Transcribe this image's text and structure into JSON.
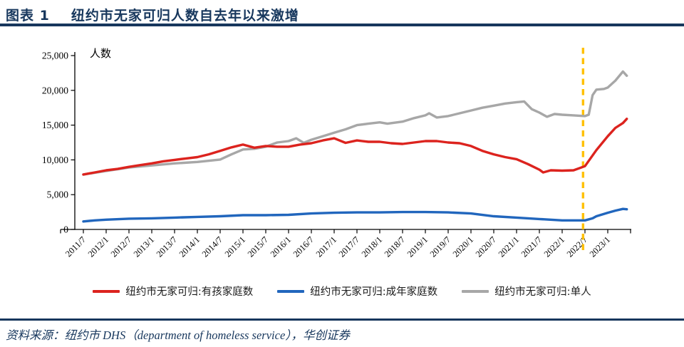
{
  "header": {
    "tag": "图表 1",
    "title": "纽约市无家可归人数自去年以来激增"
  },
  "footer": {
    "source": "资料来源：纽约市 DHS（department of homeless service），华创证券"
  },
  "colors": {
    "accent_navy": "#17375d",
    "axis_black": "#000000",
    "series_red": "#dc231e",
    "series_blue": "#2166bd",
    "series_gray": "#a7a7a7",
    "marker_yellow": "#ffc000"
  },
  "chart_data": {
    "type": "line",
    "unit_label": "人数",
    "ylim": [
      0,
      25000
    ],
    "y_tick_step": 5000,
    "y_tick_labels": [
      "0",
      "5,000",
      "10,000",
      "15,000",
      "20,000",
      "25,000"
    ],
    "x_tick_labels": [
      "2011/7",
      "2012/1",
      "2012/7",
      "2013/1",
      "2013/7",
      "2014/1",
      "2014/7",
      "2015/1",
      "2015/7",
      "2016/1",
      "2016/7",
      "2017/1",
      "2017/7",
      "2018/1",
      "2018/7",
      "2019/1",
      "2019/7",
      "2020/1",
      "2020/7",
      "2021/1",
      "2021/7",
      "2022/1",
      "2022/7",
      "2023/1"
    ],
    "x_axis_note": "monthly data, x in months since 2011/7, ticks every 6 months",
    "grid": false,
    "legend_position": "bottom",
    "marker_line": {
      "x_month": 131.5,
      "at_label": "2022/7",
      "style": "dashed",
      "color": "#ffc000"
    },
    "series": [
      {
        "name": "纽约市无家可归:单人",
        "color": "#a7a7a7",
        "points": [
          [
            0,
            7900
          ],
          [
            6,
            8400
          ],
          [
            12,
            8900
          ],
          [
            18,
            9200
          ],
          [
            24,
            9500
          ],
          [
            30,
            9700
          ],
          [
            36,
            10050
          ],
          [
            39,
            10800
          ],
          [
            42,
            11500
          ],
          [
            45,
            11600
          ],
          [
            48,
            11900
          ],
          [
            51,
            12500
          ],
          [
            54,
            12700
          ],
          [
            56,
            13100
          ],
          [
            58,
            12450
          ],
          [
            60,
            12900
          ],
          [
            63,
            13400
          ],
          [
            66,
            13900
          ],
          [
            69,
            14400
          ],
          [
            72,
            15000
          ],
          [
            75,
            15200
          ],
          [
            78,
            15400
          ],
          [
            80,
            15200
          ],
          [
            84,
            15500
          ],
          [
            87,
            16000
          ],
          [
            90,
            16400
          ],
          [
            91,
            16700
          ],
          [
            93,
            16100
          ],
          [
            96,
            16300
          ],
          [
            99,
            16700
          ],
          [
            102,
            17100
          ],
          [
            105,
            17500
          ],
          [
            108,
            17800
          ],
          [
            111,
            18100
          ],
          [
            114,
            18300
          ],
          [
            116,
            18400
          ],
          [
            118,
            17300
          ],
          [
            120,
            16800
          ],
          [
            122,
            16200
          ],
          [
            124,
            16600
          ],
          [
            126,
            16500
          ],
          [
            129,
            16400
          ],
          [
            132,
            16300
          ],
          [
            133,
            16500
          ],
          [
            134,
            19300
          ],
          [
            135,
            20100
          ],
          [
            137,
            20200
          ],
          [
            138,
            20400
          ],
          [
            140,
            21400
          ],
          [
            142,
            22700
          ],
          [
            143,
            22100
          ]
        ]
      },
      {
        "name": "纽约市无家可归:成年家庭数",
        "color": "#2166bd",
        "points": [
          [
            0,
            1150
          ],
          [
            3,
            1300
          ],
          [
            6,
            1400
          ],
          [
            12,
            1550
          ],
          [
            18,
            1600
          ],
          [
            24,
            1700
          ],
          [
            30,
            1800
          ],
          [
            36,
            1900
          ],
          [
            42,
            2050
          ],
          [
            48,
            2050
          ],
          [
            54,
            2100
          ],
          [
            60,
            2300
          ],
          [
            66,
            2400
          ],
          [
            72,
            2450
          ],
          [
            78,
            2450
          ],
          [
            84,
            2500
          ],
          [
            90,
            2500
          ],
          [
            96,
            2450
          ],
          [
            102,
            2300
          ],
          [
            108,
            1900
          ],
          [
            114,
            1700
          ],
          [
            120,
            1500
          ],
          [
            126,
            1300
          ],
          [
            132,
            1300
          ],
          [
            134,
            1600
          ],
          [
            135,
            1900
          ],
          [
            138,
            2400
          ],
          [
            140,
            2700
          ],
          [
            142,
            2950
          ],
          [
            143,
            2900
          ]
        ]
      },
      {
        "name": "纽约市无家可归:有孩家庭数",
        "color": "#dc231e",
        "points": [
          [
            0,
            7900
          ],
          [
            3,
            8200
          ],
          [
            6,
            8500
          ],
          [
            9,
            8700
          ],
          [
            12,
            9000
          ],
          [
            15,
            9250
          ],
          [
            18,
            9500
          ],
          [
            21,
            9800
          ],
          [
            24,
            10000
          ],
          [
            27,
            10200
          ],
          [
            30,
            10400
          ],
          [
            33,
            10800
          ],
          [
            36,
            11300
          ],
          [
            39,
            11800
          ],
          [
            42,
            12200
          ],
          [
            45,
            11750
          ],
          [
            48,
            12000
          ],
          [
            51,
            11900
          ],
          [
            54,
            11900
          ],
          [
            57,
            12200
          ],
          [
            60,
            12400
          ],
          [
            63,
            12800
          ],
          [
            66,
            13100
          ],
          [
            69,
            12450
          ],
          [
            72,
            12800
          ],
          [
            75,
            12600
          ],
          [
            78,
            12600
          ],
          [
            81,
            12400
          ],
          [
            84,
            12300
          ],
          [
            87,
            12500
          ],
          [
            90,
            12700
          ],
          [
            93,
            12700
          ],
          [
            96,
            12500
          ],
          [
            99,
            12400
          ],
          [
            102,
            12000
          ],
          [
            105,
            11300
          ],
          [
            108,
            10800
          ],
          [
            111,
            10400
          ],
          [
            114,
            10100
          ],
          [
            117,
            9400
          ],
          [
            120,
            8600
          ],
          [
            121,
            8200
          ],
          [
            123,
            8500
          ],
          [
            126,
            8450
          ],
          [
            129,
            8500
          ],
          [
            132,
            9100
          ],
          [
            135,
            11400
          ],
          [
            138,
            13400
          ],
          [
            140,
            14600
          ],
          [
            142,
            15300
          ],
          [
            143,
            15900
          ]
        ]
      }
    ],
    "legend_order": [
      2,
      1,
      0
    ]
  }
}
